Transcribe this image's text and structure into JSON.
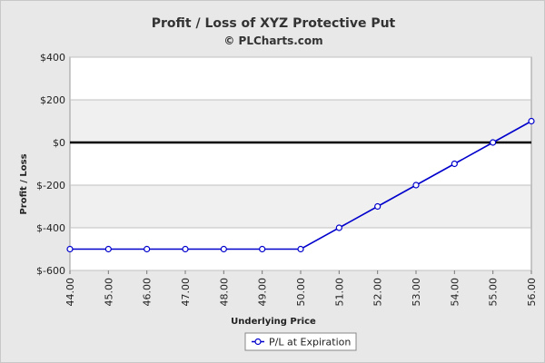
{
  "chart_data": {
    "type": "line",
    "title": "Profit / Loss of XYZ Protective Put",
    "subtitle": "© PLCharts.com",
    "xlabel": "Underlying Price",
    "ylabel": "Profit / Loss",
    "x": [
      44,
      45,
      46,
      47,
      48,
      49,
      50,
      51,
      52,
      53,
      54,
      55,
      56
    ],
    "x_tick_labels": [
      "44.00",
      "45.00",
      "46.00",
      "47.00",
      "48.00",
      "49.00",
      "50.00",
      "51.00",
      "52.00",
      "53.00",
      "54.00",
      "55.00",
      "56.00"
    ],
    "xlim": [
      44,
      56
    ],
    "ylim": [
      -600,
      400
    ],
    "y_ticks": [
      400,
      200,
      0,
      -200,
      -400,
      -600
    ],
    "y_tick_labels": [
      "$400",
      "$200",
      "$0",
      "$-200",
      "$-400",
      "$-600"
    ],
    "series": [
      {
        "name": "P/L at Expiration",
        "values": [
          -500,
          -500,
          -500,
          -500,
          -500,
          -500,
          -500,
          -400,
          -300,
          -200,
          -100,
          0,
          100
        ]
      }
    ],
    "zero_line": true,
    "grid": true,
    "legend_placement": "bottom-center",
    "colors": {
      "series": "#0000cc",
      "background": "#e8e8e8",
      "plot_band_light": "#ffffff",
      "plot_band_dark": "#f0f0f0",
      "grid": "#c0c0c0",
      "zero_line": "#000000"
    }
  }
}
